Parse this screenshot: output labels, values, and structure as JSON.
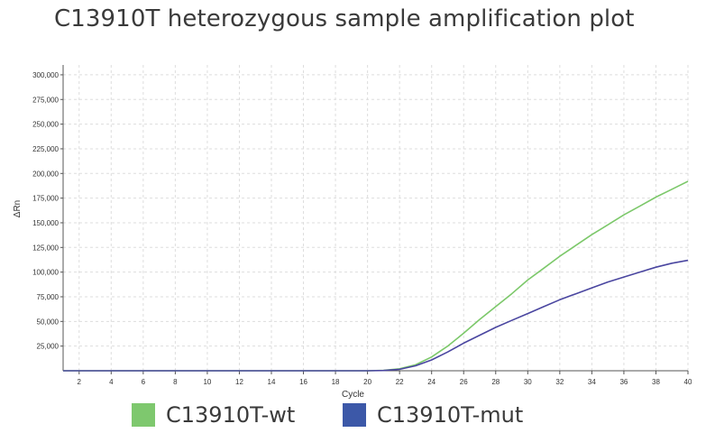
{
  "title": "C13910T heterozygous sample amplification plot",
  "chart_data": {
    "type": "line",
    "xlabel": "Cycle",
    "ylabel": "ΔRn",
    "xlim": [
      1,
      40
    ],
    "ylim": [
      0,
      310000
    ],
    "xticks": [
      "2",
      "4",
      "6",
      "8",
      "10",
      "12",
      "14",
      "16",
      "18",
      "20",
      "22",
      "24",
      "26",
      "28",
      "30",
      "32",
      "34",
      "36",
      "38",
      "40"
    ],
    "yticks": [
      "25,000",
      "50,000",
      "75,000",
      "100,000",
      "125,000",
      "150,000",
      "175,000",
      "200,000",
      "225,000",
      "250,000",
      "275,000",
      "300,000"
    ],
    "grid": true,
    "legend_position": "bottom",
    "x": [
      1,
      2,
      3,
      4,
      5,
      6,
      7,
      8,
      9,
      10,
      11,
      12,
      13,
      14,
      15,
      16,
      17,
      18,
      19,
      20,
      21,
      22,
      23,
      24,
      25,
      26,
      27,
      28,
      29,
      30,
      31,
      32,
      33,
      34,
      35,
      36,
      37,
      38,
      39,
      40
    ],
    "series": [
      {
        "name": "C13910T-wt",
        "color": "#7cc86a",
        "values": [
          0,
          0,
          0,
          0,
          0,
          0,
          0,
          0,
          0,
          0,
          0,
          0,
          0,
          0,
          0,
          0,
          0,
          0,
          0,
          0,
          500,
          2000,
          6000,
          14000,
          25000,
          38000,
          52000,
          65000,
          78000,
          92000,
          104000,
          116000,
          127000,
          138000,
          148000,
          158000,
          167000,
          176000,
          184000,
          192000
        ]
      },
      {
        "name": "C13910T-mut",
        "color": "#4a46a0",
        "values": [
          0,
          0,
          0,
          0,
          0,
          0,
          0,
          0,
          0,
          0,
          0,
          0,
          0,
          0,
          0,
          0,
          0,
          0,
          0,
          0,
          300,
          1500,
          5000,
          11000,
          19000,
          28000,
          36000,
          44000,
          51000,
          58000,
          65000,
          72000,
          78000,
          84000,
          90000,
          95000,
          100000,
          105000,
          109000,
          112000
        ]
      }
    ]
  },
  "legend": {
    "items": [
      {
        "label": "C13910T-wt",
        "color": "#7ec86e"
      },
      {
        "label": "C13910T-mut",
        "color": "#3c58a8"
      }
    ]
  }
}
